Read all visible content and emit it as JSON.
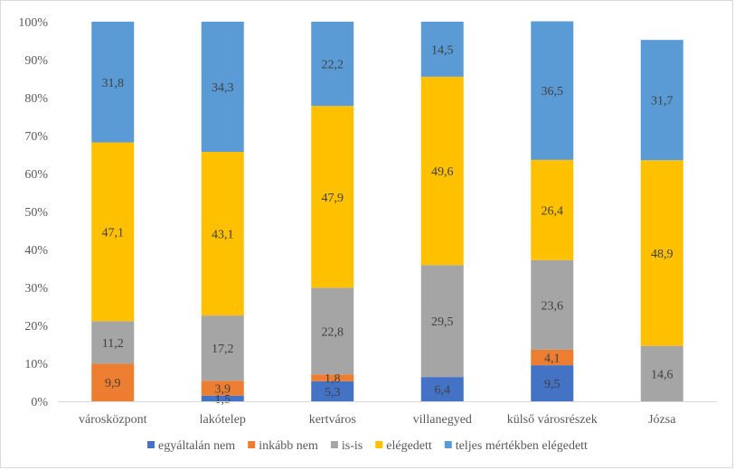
{
  "chart_data": {
    "type": "bar",
    "stacked": true,
    "percent_stacked": true,
    "title": "",
    "xlabel": "",
    "ylabel": "",
    "ylim": [
      0,
      100
    ],
    "y_tick_labels": [
      "0%",
      "10%",
      "20%",
      "30%",
      "40%",
      "50%",
      "60%",
      "70%",
      "80%",
      "90%",
      "100%"
    ],
    "grid": false,
    "legend_position": "bottom",
    "categories": [
      "városközpont",
      "lakótelep",
      "kertváros",
      "villanegyed",
      "külső városrészek",
      "Józsa"
    ],
    "series": [
      {
        "name": "egyáltalán nem",
        "color": "#4472c4",
        "values": [
          0,
          1.5,
          5.3,
          6.4,
          9.5,
          0
        ],
        "labels": [
          "",
          "1,5",
          "5,3",
          "6,4",
          "9,5",
          ""
        ]
      },
      {
        "name": "inkább nem",
        "color": "#ed7d31",
        "values": [
          9.9,
          3.9,
          1.8,
          0,
          4.1,
          0
        ],
        "labels": [
          "9,9",
          "3,9",
          "1,8",
          "",
          "4,1",
          ""
        ]
      },
      {
        "name": "is-is",
        "color": "#a5a5a5",
        "values": [
          11.2,
          17.2,
          22.8,
          29.5,
          23.6,
          14.6
        ],
        "labels": [
          "11,2",
          "17,2",
          "22,8",
          "29,5",
          "23,6",
          "14,6"
        ]
      },
      {
        "name": "elégedett",
        "color": "#ffc000",
        "values": [
          47.1,
          43.1,
          47.9,
          49.6,
          26.4,
          48.9
        ],
        "labels": [
          "47,1",
          "43,1",
          "47,9",
          "49,6",
          "26,4",
          "48,9"
        ]
      },
      {
        "name": "teljes mértékben elégedett",
        "color": "#5b9bd5",
        "values": [
          31.8,
          34.3,
          22.2,
          14.5,
          36.5,
          31.7
        ],
        "labels": [
          "31,8",
          "34,3",
          "22,2",
          "14,5",
          "36,5",
          "31,7"
        ]
      }
    ]
  }
}
